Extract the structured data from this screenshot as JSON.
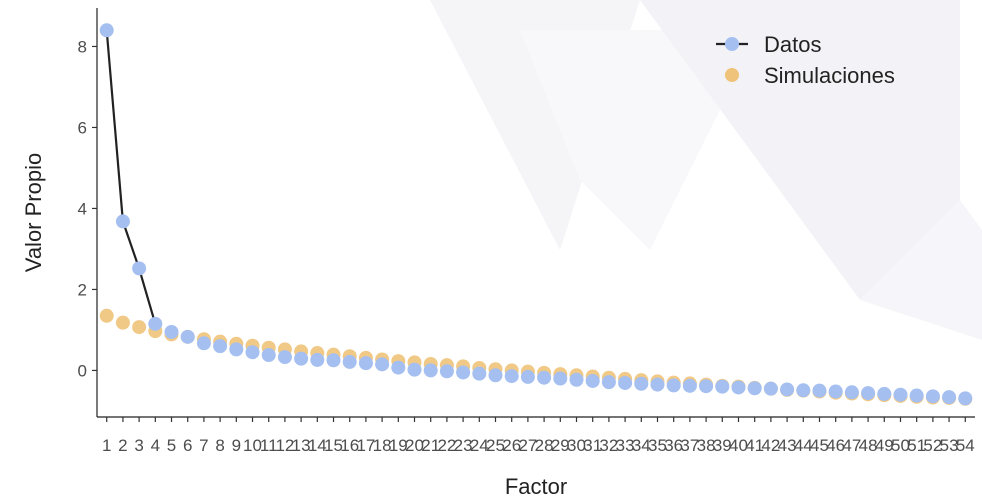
{
  "chart_data": {
    "type": "scatter",
    "xlabel": "Factor",
    "ylabel": "Valor Propio",
    "x": [
      1,
      2,
      3,
      4,
      5,
      6,
      7,
      8,
      9,
      10,
      11,
      12,
      13,
      14,
      15,
      16,
      17,
      18,
      19,
      20,
      21,
      22,
      23,
      24,
      25,
      26,
      27,
      28,
      29,
      30,
      31,
      32,
      33,
      34,
      35,
      36,
      37,
      38,
      39,
      40,
      41,
      42,
      43,
      44,
      45,
      46,
      47,
      48,
      49,
      50,
      51,
      52,
      53,
      54
    ],
    "x_tick_labels": [
      "1",
      "2",
      "3",
      "4",
      "5",
      "6",
      "7",
      "8",
      "9",
      "10",
      "11",
      "12",
      "13",
      "14",
      "15",
      "16",
      "17",
      "18",
      "19",
      "20",
      "21",
      "22",
      "23",
      "24",
      "25",
      "26",
      "27",
      "28",
      "29",
      "30",
      "31",
      "32",
      "33",
      "34",
      "35",
      "36",
      "37",
      "38",
      "39",
      "40",
      "41",
      "42",
      "43",
      "44",
      "45",
      "46",
      "47",
      "48",
      "49",
      "50",
      "51",
      "52",
      "53",
      "54"
    ],
    "y_ticks": [
      0,
      2,
      4,
      6,
      8
    ],
    "y_tick_labels": [
      "0",
      "2",
      "4",
      "6",
      "8"
    ],
    "xlim": [
      0.4,
      54.6
    ],
    "ylim": [
      -1.15,
      8.95
    ],
    "grid": false,
    "legend_position": "top-right",
    "series": [
      {
        "name": "Datos",
        "color": "#a4bff0",
        "line_color": "#222222",
        "values": [
          8.4,
          3.68,
          2.52,
          1.15,
          0.95,
          0.83,
          0.67,
          0.6,
          0.52,
          0.45,
          0.38,
          0.33,
          0.29,
          0.26,
          0.25,
          0.21,
          0.18,
          0.15,
          0.07,
          0.02,
          0.0,
          -0.02,
          -0.05,
          -0.08,
          -0.12,
          -0.14,
          -0.16,
          -0.18,
          -0.2,
          -0.23,
          -0.26,
          -0.29,
          -0.31,
          -0.33,
          -0.35,
          -0.37,
          -0.38,
          -0.39,
          -0.4,
          -0.42,
          -0.44,
          -0.45,
          -0.47,
          -0.49,
          -0.5,
          -0.52,
          -0.54,
          -0.56,
          -0.58,
          -0.6,
          -0.62,
          -0.64,
          -0.66,
          -0.69
        ]
      },
      {
        "name": "Simulaciones",
        "color": "#f0c37a",
        "values": [
          1.35,
          1.18,
          1.07,
          0.97,
          0.89,
          0.83,
          0.77,
          0.71,
          0.66,
          0.61,
          0.56,
          0.52,
          0.47,
          0.43,
          0.39,
          0.35,
          0.31,
          0.27,
          0.23,
          0.2,
          0.16,
          0.13,
          0.1,
          0.06,
          0.03,
          0.0,
          -0.03,
          -0.06,
          -0.09,
          -0.12,
          -0.15,
          -0.18,
          -0.21,
          -0.24,
          -0.27,
          -0.3,
          -0.32,
          -0.35,
          -0.38,
          -0.4,
          -0.43,
          -0.45,
          -0.48,
          -0.5,
          -0.52,
          -0.55,
          -0.57,
          -0.59,
          -0.61,
          -0.63,
          -0.65,
          -0.67,
          -0.68,
          -0.7
        ]
      }
    ]
  }
}
